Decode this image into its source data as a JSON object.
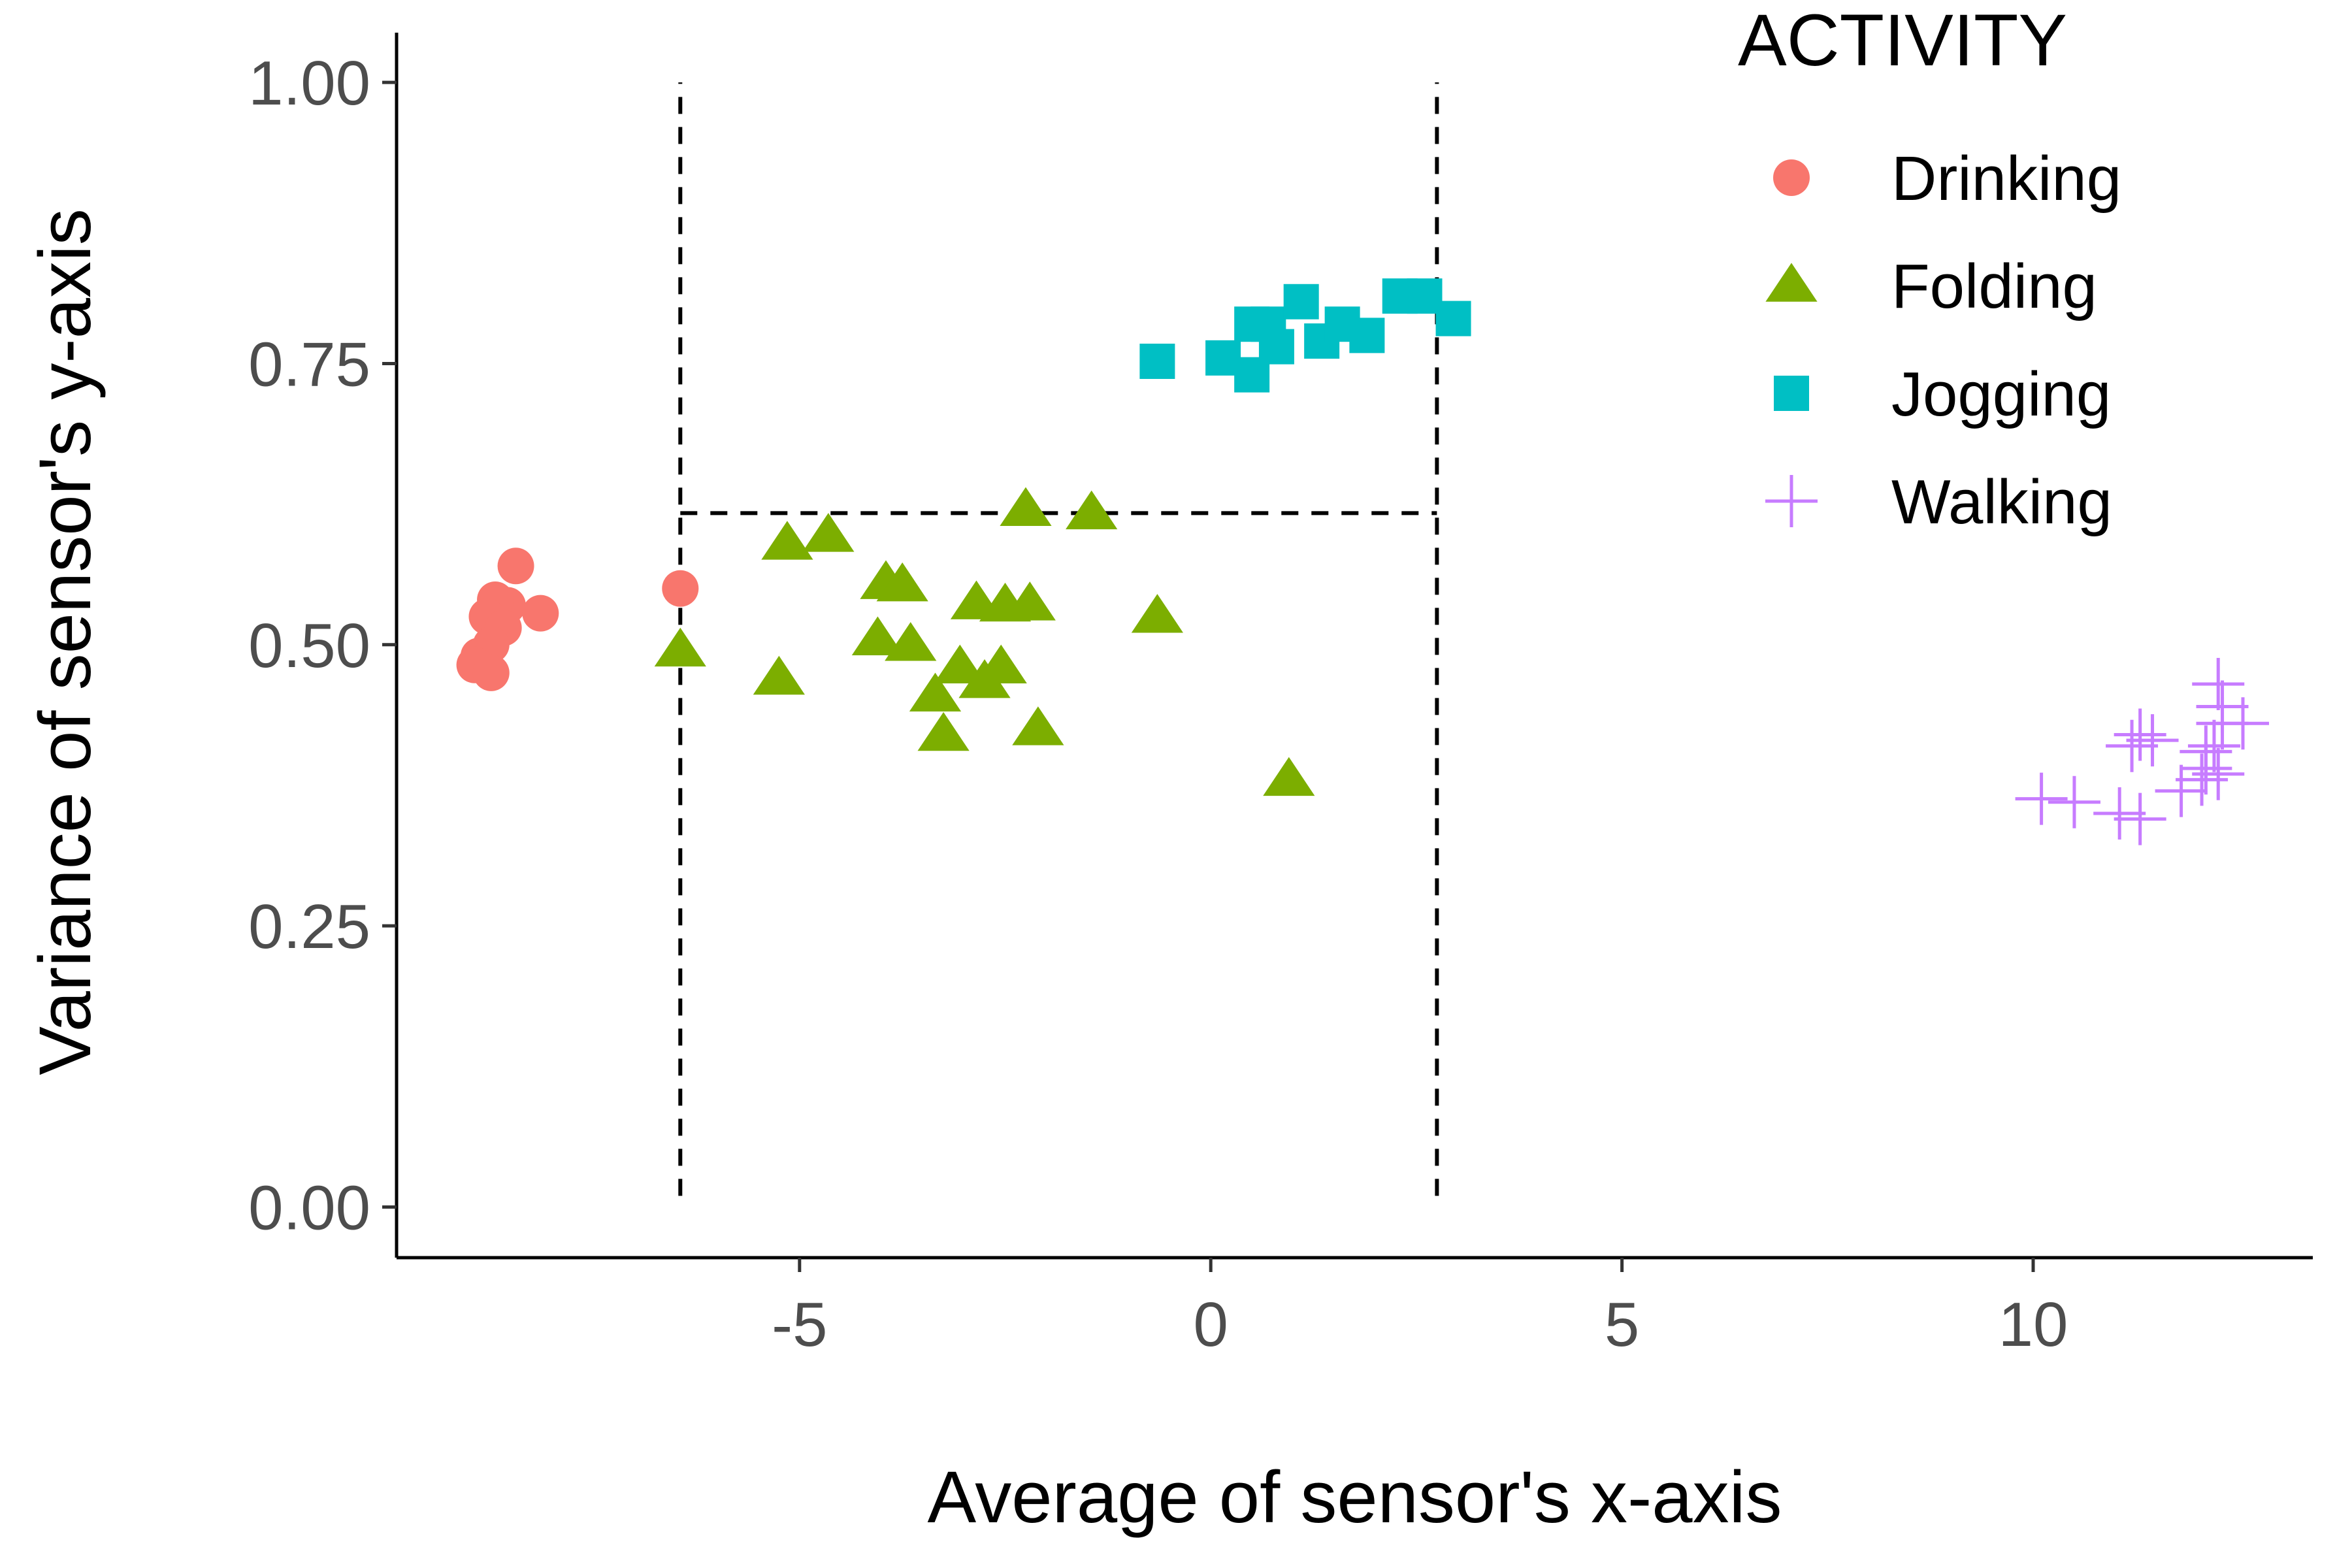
{
  "chart_data": {
    "type": "scatter",
    "title": "",
    "xlabel": "Average of sensor's x-axis",
    "ylabel": "Variance of sensor's y-axis",
    "xlim": [
      -9.9,
      13.4
    ],
    "ylim": [
      -0.045,
      1.05
    ],
    "x_ticks": [
      -5,
      0,
      5,
      10
    ],
    "x_tick_labels": [
      "-5",
      "0",
      "5",
      "10"
    ],
    "y_ticks": [
      0,
      0.25,
      0.5,
      0.75,
      1.0
    ],
    "y_tick_labels": [
      "0.00",
      "0.25",
      "0.50",
      "0.75",
      "1.00"
    ],
    "grid": false,
    "legend": {
      "title": "ACTIVITY",
      "position": "right"
    },
    "reference_lines": [
      {
        "orientation": "vertical",
        "x": -6.45,
        "y_from": 0.01,
        "y_to": 1.0,
        "style": "dashed"
      },
      {
        "orientation": "vertical",
        "x": 2.75,
        "y_from": 0.01,
        "y_to": 1.0,
        "style": "dashed"
      },
      {
        "orientation": "horizontal",
        "y": 0.617,
        "x_from": -6.45,
        "x_to": 2.75,
        "style": "dashed"
      }
    ],
    "series": [
      {
        "name": "Drinking",
        "color": "#F8766D",
        "marker": "circle",
        "points": [
          [
            -8.45,
            0.57
          ],
          [
            -8.55,
            0.535
          ],
          [
            -8.7,
            0.54
          ],
          [
            -8.8,
            0.525
          ],
          [
            -8.6,
            0.515
          ],
          [
            -8.75,
            0.5
          ],
          [
            -8.9,
            0.49
          ],
          [
            -8.95,
            0.482
          ],
          [
            -8.75,
            0.475
          ],
          [
            -8.15,
            0.528
          ],
          [
            -6.45,
            0.55
          ]
        ]
      },
      {
        "name": "Folding",
        "color": "#7CAE00",
        "marker": "triangle",
        "points": [
          [
            -6.45,
            0.495
          ],
          [
            -5.15,
            0.59
          ],
          [
            -4.65,
            0.597
          ],
          [
            -3.95,
            0.555
          ],
          [
            -3.75,
            0.553
          ],
          [
            -4.05,
            0.505
          ],
          [
            -3.65,
            0.5
          ],
          [
            -3.35,
            0.455
          ],
          [
            -3.25,
            0.42
          ],
          [
            -3.05,
            0.48
          ],
          [
            -2.85,
            0.537
          ],
          [
            -2.75,
            0.467
          ],
          [
            -2.55,
            0.48
          ],
          [
            -2.5,
            0.535
          ],
          [
            -2.2,
            0.536
          ],
          [
            -2.1,
            0.425
          ],
          [
            -5.25,
            0.47
          ],
          [
            -2.25,
            0.62
          ],
          [
            -1.45,
            0.617
          ],
          [
            -0.65,
            0.525
          ],
          [
            0.95,
            0.38
          ]
        ]
      },
      {
        "name": "Jogging",
        "color": "#00BFC4",
        "marker": "square",
        "points": [
          [
            -0.65,
            0.752
          ],
          [
            0.15,
            0.755
          ],
          [
            0.5,
            0.74
          ],
          [
            0.5,
            0.785
          ],
          [
            0.7,
            0.785
          ],
          [
            0.8,
            0.765
          ],
          [
            1.1,
            0.805
          ],
          [
            1.35,
            0.77
          ],
          [
            1.6,
            0.785
          ],
          [
            1.9,
            0.775
          ],
          [
            2.3,
            0.81
          ],
          [
            2.6,
            0.81
          ],
          [
            2.95,
            0.79
          ]
        ]
      },
      {
        "name": "Walking",
        "color": "#C77CFF",
        "marker": "plus",
        "points": [
          [
            10.1,
            0.363
          ],
          [
            10.5,
            0.36
          ],
          [
            11.05,
            0.35
          ],
          [
            11.3,
            0.345
          ],
          [
            11.2,
            0.41
          ],
          [
            11.3,
            0.42
          ],
          [
            11.45,
            0.415
          ],
          [
            11.8,
            0.37
          ],
          [
            12.05,
            0.38
          ],
          [
            12.1,
            0.39
          ],
          [
            12.1,
            0.405
          ],
          [
            12.2,
            0.41
          ],
          [
            12.3,
            0.43
          ],
          [
            12.25,
            0.385
          ],
          [
            12.3,
            0.445
          ],
          [
            12.25,
            0.465
          ],
          [
            12.55,
            0.43
          ]
        ]
      }
    ]
  }
}
